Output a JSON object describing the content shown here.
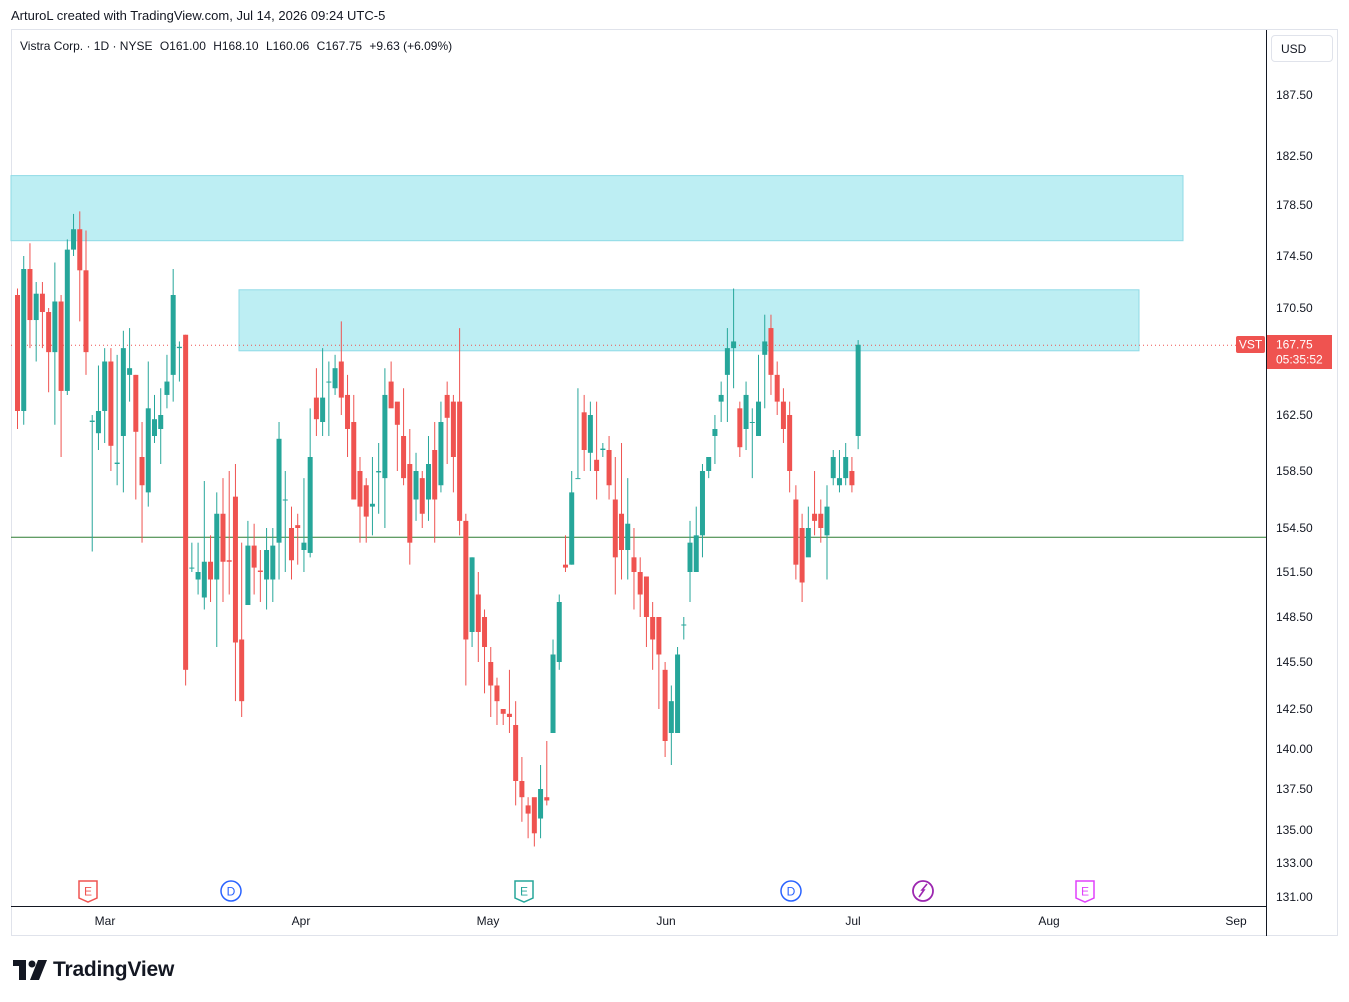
{
  "header": {
    "attribution": "ArturoL created with TradingView.com, Jul 14, 2026 09:24 UTC-5"
  },
  "legend": {
    "symbol": "Vistra Corp. · 1D · NYSE",
    "open": "O161.00",
    "high": "H168.10",
    "low": "L160.06",
    "close": "C167.75",
    "change": "+9.63 (+6.09%)"
  },
  "currency": "USD",
  "price_tag": {
    "ticker": "VST",
    "price": "167.75",
    "countdown": "05:35:52"
  },
  "brand": {
    "name": "TradingView"
  },
  "colors": {
    "up": "#26a69a",
    "down": "#ef5350",
    "zone": "#bdeef3",
    "zone_border": "#8fdae6",
    "support_line": "#2e7d32"
  },
  "chart_data": {
    "type": "candlestick",
    "title": "Vistra Corp. · 1D · NYSE",
    "x_axis_labels": [
      "Mar",
      "Apr",
      "May",
      "Jun",
      "Jul",
      "Aug",
      "Sep"
    ],
    "y_axis_labels": [
      "187.50",
      "182.50",
      "178.50",
      "174.50",
      "170.50",
      "162.50",
      "158.50",
      "154.50",
      "151.50",
      "148.50",
      "145.50",
      "142.50",
      "140.00",
      "137.50",
      "135.00",
      "133.00",
      "131.00"
    ],
    "zones": [
      {
        "low": 175.7,
        "high": 180.9
      },
      {
        "low": 167.3,
        "high": 171.9
      }
    ],
    "horizontal_line": 153.9,
    "last_close": 167.75,
    "event_markers": [
      {
        "label": "E",
        "kind": "earnings",
        "color": "#ef5350",
        "date": "2026-02-25"
      },
      {
        "label": "D",
        "kind": "dividend",
        "color": "#2962ff",
        "date": "2026-03-20"
      },
      {
        "label": "E",
        "kind": "earnings",
        "color": "#26a69a",
        "date": "2026-05-07"
      },
      {
        "label": "D",
        "kind": "dividend",
        "color": "#2962ff",
        "date": "2026-06-20"
      },
      {
        "label": "",
        "kind": "today",
        "color": "#9c27b0",
        "date": "2026-07-14"
      },
      {
        "label": "E",
        "kind": "earnings",
        "color": "#e040fb",
        "date": "2026-08-06"
      }
    ],
    "candles": [
      [
        171.5,
        162.8,
        172,
        161.5
      ],
      [
        162.8,
        173.5,
        174.5,
        161.8
      ],
      [
        173.5,
        169.6,
        175.5,
        167.5
      ],
      [
        169.6,
        171.6,
        172.5,
        166.5
      ],
      [
        171.6,
        170.2,
        172.5,
        167.5
      ],
      [
        170.2,
        167.2,
        170.5,
        164.2
      ],
      [
        167.2,
        171.0,
        174,
        161.8
      ],
      [
        171.0,
        164.3,
        171.5,
        159.5
      ],
      [
        164.3,
        175.0,
        175.8,
        164.0
      ],
      [
        175.0,
        176.6,
        177.8,
        174.5
      ],
      [
        176.6,
        173.4,
        178.0,
        169.5
      ],
      [
        173.4,
        167.2,
        176.5,
        165.5
      ],
      [
        162.0,
        162.1,
        162.5,
        152.9
      ],
      [
        161.2,
        162.8,
        166.2,
        160.0
      ],
      [
        162.8,
        166.5,
        167.5,
        160.5
      ],
      [
        166.5,
        160.3,
        167.5,
        158.5
      ],
      [
        159.0,
        159.1,
        167.0,
        157.5
      ],
      [
        161.0,
        167.5,
        168.8,
        157.0
      ],
      [
        165.5,
        166.0,
        169.0,
        163.5
      ],
      [
        165.5,
        161.3,
        165.5,
        156.5
      ],
      [
        159.5,
        157.5,
        162.0,
        153.5
      ],
      [
        157.0,
        163.0,
        166.5,
        156.0
      ],
      [
        161.0,
        162.2,
        164.0,
        160.5
      ],
      [
        161.5,
        162.5,
        164.5,
        159.0
      ],
      [
        164.0,
        165.0,
        167.0,
        163.0
      ],
      [
        165.5,
        171.5,
        173.5,
        163.5
      ],
      [
        167.5,
        167.6,
        168.0,
        165.0
      ],
      [
        168.5,
        145.0,
        168.5,
        144.0
      ],
      [
        151.8,
        151.8,
        153.5,
        151.5
      ],
      [
        151.0,
        151.5,
        153.5,
        150.0
      ],
      [
        149.8,
        152.2,
        157.8,
        149.0
      ],
      [
        152.2,
        151.0,
        154.0,
        149.5
      ],
      [
        151.0,
        155.5,
        157.0,
        146.5
      ],
      [
        155.5,
        152.2,
        158.0,
        149.5
      ],
      [
        152.3,
        152.2,
        158.5,
        150.0
      ],
      [
        156.7,
        146.8,
        159.0,
        143.0
      ],
      [
        147.0,
        143.0,
        153.5,
        142.0
      ],
      [
        149.3,
        153.3,
        155.0,
        150.5
      ],
      [
        153.3,
        151.8,
        154.8,
        150.0
      ],
      [
        151.6,
        151.5,
        153.0,
        149.5
      ],
      [
        151.0,
        153.0,
        154.5,
        149.0
      ],
      [
        151.0,
        153.3,
        154.5,
        149.5
      ],
      [
        153.5,
        160.8,
        162.0,
        151.0
      ],
      [
        156.5,
        156.5,
        158.5,
        151.5
      ],
      [
        154.5,
        152.3,
        156.0,
        151.0
      ],
      [
        154.7,
        154.5,
        155.5,
        152.0
      ],
      [
        153.0,
        153.5,
        158.0,
        151.5
      ],
      [
        152.8,
        159.5,
        163.0,
        152.5
      ],
      [
        163.8,
        162.2,
        166.0,
        161.0
      ],
      [
        162.0,
        163.8,
        167.5,
        161.0
      ],
      [
        165.0,
        165.0,
        166.5,
        161.0
      ],
      [
        164.5,
        166.0,
        167.0,
        164.0
      ],
      [
        166.5,
        163.8,
        169.5,
        162.5
      ],
      [
        164.0,
        161.5,
        165.5,
        159.5
      ],
      [
        162.0,
        156.5,
        164.0,
        158.5
      ],
      [
        158.5,
        156.0,
        159.5,
        153.5
      ],
      [
        157.5,
        155.3,
        158.0,
        153.5
      ],
      [
        156.0,
        156.2,
        159.5,
        154.0
      ],
      [
        158.4,
        158.5,
        160.5,
        155.5
      ],
      [
        158.0,
        164.0,
        166.0,
        154.5
      ],
      [
        165.0,
        163.0,
        166.5,
        164.5
      ],
      [
        163.5,
        161.8,
        163.0,
        158.5
      ],
      [
        161.0,
        158.0,
        164.5,
        157.5
      ],
      [
        159.0,
        153.5,
        161.5,
        152.0
      ],
      [
        156.5,
        158.5,
        159.8,
        155.0
      ],
      [
        158.0,
        155.5,
        158.5,
        154.5
      ],
      [
        156.5,
        159.0,
        161.0,
        155.0
      ],
      [
        160.0,
        156.5,
        162.0,
        153.5
      ],
      [
        157.5,
        162.0,
        163.5,
        157.0
      ],
      [
        164.0,
        162.3,
        165.0,
        159.0
      ],
      [
        163.5,
        159.5,
        164.0,
        157.0
      ],
      [
        163.5,
        155.0,
        169.0,
        154.0
      ],
      [
        155.0,
        147.0,
        155.5,
        144.0
      ],
      [
        147.5,
        152.5,
        152.5,
        146.5
      ],
      [
        150.0,
        147.5,
        151.5,
        145.5
      ],
      [
        148.5,
        146.5,
        149.0,
        143.5
      ],
      [
        145.5,
        144.0,
        146.5,
        142.0
      ],
      [
        144.0,
        143.0,
        144.5,
        141.5
      ],
      [
        142.5,
        142.2,
        142.5,
        141.5
      ],
      [
        142.2,
        142.0,
        145.0,
        141.0
      ],
      [
        141.5,
        138.0,
        143.0,
        136.5
      ],
      [
        138.0,
        137.0,
        139.5,
        135.5
      ],
      [
        136.5,
        136.0,
        137.0,
        134.5
      ],
      [
        137.0,
        134.8,
        135.5,
        134.0
      ],
      [
        135.7,
        137.5,
        139.0,
        134.5
      ],
      [
        137.0,
        136.8,
        140.5,
        136.5
      ],
      [
        141.0,
        146.0,
        147.0,
        141.0
      ],
      [
        145.5,
        149.5,
        150.0,
        145.0
      ],
      [
        152.0,
        151.8,
        154.0,
        151.5
      ],
      [
        152.0,
        157.0,
        158.5,
        152.0
      ],
      [
        158.0,
        158.0,
        164.5,
        158.0
      ],
      [
        162.7,
        160.0,
        164.0,
        158.5
      ],
      [
        159.8,
        162.5,
        163.5,
        158.5
      ],
      [
        159.3,
        158.5,
        163.5,
        156.5
      ],
      [
        160.0,
        160.1,
        160.5,
        159.5
      ],
      [
        160.0,
        157.5,
        161.0,
        156.5
      ],
      [
        156.5,
        152.5,
        159.5,
        150.0
      ],
      [
        155.5,
        153.0,
        160.5,
        151.0
      ],
      [
        153.0,
        154.8,
        158.0,
        151.0
      ],
      [
        152.5,
        151.5,
        154.5,
        149.0
      ],
      [
        151.5,
        150.0,
        152.5,
        148.5
      ],
      [
        151.2,
        148.5,
        151.0,
        146.5
      ],
      [
        148.5,
        147.0,
        149.5,
        145.0
      ],
      [
        148.5,
        146.0,
        148.5,
        142.5
      ],
      [
        145.0,
        140.5,
        145.5,
        139.5
      ],
      [
        141.0,
        143.0,
        144.0,
        139.0
      ],
      [
        141.0,
        146.0,
        146.5,
        141.0
      ],
      [
        148.0,
        148.0,
        148.5,
        147.0
      ],
      [
        151.5,
        153.5,
        155.0,
        149.5
      ],
      [
        151.5,
        154.0,
        156.0,
        152.0
      ],
      [
        154.0,
        158.5,
        159.0,
        152.5
      ],
      [
        158.5,
        159.5,
        159.5,
        158.0
      ],
      [
        161.0,
        161.5,
        162.5,
        159.0
      ],
      [
        163.5,
        164.0,
        165.0,
        162.0
      ],
      [
        165.5,
        167.5,
        169.0,
        162.0
      ],
      [
        167.5,
        168.0,
        172.0,
        164.5
      ],
      [
        163.0,
        160.2,
        163.5,
        159.5
      ],
      [
        161.5,
        164.0,
        165.0,
        160.0
      ],
      [
        162.0,
        162.0,
        163.0,
        158.0
      ],
      [
        161.0,
        163.5,
        167.0,
        161.0
      ],
      [
        167.0,
        168.0,
        170.0,
        163.0
      ],
      [
        169.0,
        165.5,
        170.0,
        164.0
      ],
      [
        165.5,
        163.5,
        166.5,
        162.5
      ],
      [
        163.5,
        161.5,
        164.5,
        160.5
      ],
      [
        162.5,
        158.5,
        163.5,
        157.0
      ],
      [
        156.5,
        152.0,
        157.5,
        151.0
      ],
      [
        154.5,
        150.8,
        155.5,
        149.5
      ],
      [
        152.5,
        154.5,
        156.0,
        153.0
      ],
      [
        155.5,
        155.0,
        158.5,
        154.0
      ],
      [
        155.5,
        154.5,
        156.5,
        153.5
      ],
      [
        154.0,
        156.0,
        157.5,
        151.0
      ],
      [
        158.0,
        159.5,
        160.0,
        157.5
      ],
      [
        157.5,
        158.0,
        160.0,
        157.0
      ],
      [
        158.0,
        159.5,
        160.5,
        157.5
      ],
      [
        158.5,
        157.5,
        159.5,
        157.0
      ],
      [
        161.0,
        167.75,
        168.1,
        160.06
      ]
    ]
  }
}
